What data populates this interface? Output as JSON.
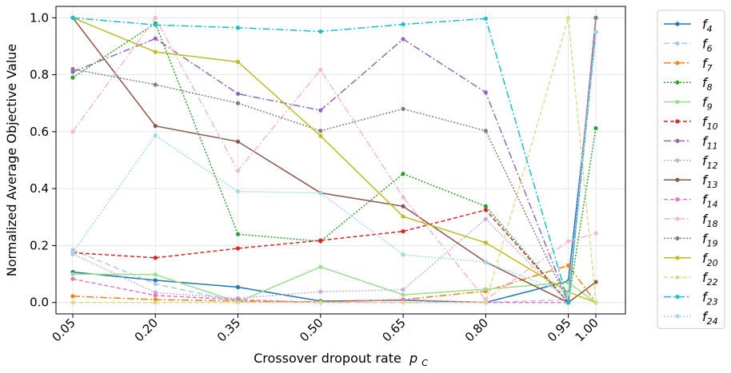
{
  "chart_data": {
    "type": "line",
    "title": "",
    "xlabel": "Crossover dropout rate",
    "xlabel_symbol": "p",
    "xlabel_subscript": "C",
    "ylabel": "Normalized Average Objective Value",
    "x": [
      0.05,
      0.2,
      0.35,
      0.5,
      0.65,
      0.8,
      0.95,
      1.0
    ],
    "xtick_labels": [
      "0.05",
      "0.20",
      "0.35",
      "0.50",
      "0.65",
      "0.80",
      "0.95",
      "1.00"
    ],
    "ylim": [
      -0.04,
      1.04
    ],
    "yticks": [
      0.0,
      0.2,
      0.4,
      0.6,
      0.8,
      1.0
    ],
    "ytick_labels": [
      "0.0",
      "0.2",
      "0.4",
      "0.6",
      "0.8",
      "1.0"
    ],
    "grid": true,
    "legend_position": "outside-right",
    "series": [
      {
        "name": "f",
        "sub": "4",
        "color": "#1f77b4",
        "dash": "",
        "values": [
          0.107,
          0.078,
          0.054,
          0.005,
          0.008,
          0.0,
          0.075,
          0.95
        ]
      },
      {
        "name": "f",
        "sub": "6",
        "color": "#aec7e8",
        "dash": "7,4",
        "values": [
          0.185,
          0.065,
          0.003,
          0.0,
          0.0,
          0.0,
          0.01,
          0.95
        ]
      },
      {
        "name": "f",
        "sub": "7",
        "color": "#ff7f0e",
        "dash": "9,3,2,3",
        "values": [
          0.022,
          0.01,
          0.005,
          0.002,
          0.01,
          0.04,
          0.13,
          0.0
        ]
      },
      {
        "name": "f",
        "sub": "8",
        "color": "#2ca02c",
        "dash": "2,2",
        "values": [
          0.79,
          0.98,
          0.24,
          0.215,
          0.452,
          0.338,
          0.0,
          0.612
        ]
      },
      {
        "name": "f",
        "sub": "9",
        "color": "#98df8a",
        "dash": "",
        "values": [
          0.1,
          0.098,
          0.002,
          0.125,
          0.027,
          0.047,
          0.07,
          0.0
        ]
      },
      {
        "name": "f",
        "sub": "10",
        "color": "#d62728",
        "dash": "5,3",
        "values": [
          0.175,
          0.157,
          0.19,
          0.218,
          0.25,
          0.325,
          0.0,
          1.0
        ]
      },
      {
        "name": "f",
        "sub": "11",
        "color": "#9467bd",
        "dash": "9,3,2,3",
        "values": [
          0.81,
          0.927,
          0.733,
          0.675,
          0.925,
          0.738,
          0.0,
          1.0
        ]
      },
      {
        "name": "f",
        "sub": "12",
        "color": "#c5b0d5",
        "dash": "2,2",
        "values": [
          0.17,
          0.035,
          0.015,
          0.038,
          0.045,
          0.293,
          0.0,
          0.95
        ]
      },
      {
        "name": "f",
        "sub": "13",
        "color": "#8c564b",
        "dash": "",
        "values": [
          1.0,
          0.62,
          0.565,
          0.385,
          0.338,
          0.142,
          0.0,
          0.072
        ]
      },
      {
        "name": "f",
        "sub": "14",
        "color": "#e377c2",
        "dash": "5,3",
        "values": [
          0.083,
          0.025,
          0.01,
          0.0,
          0.01,
          0.0,
          0.0,
          1.0
        ]
      },
      {
        "name": "f",
        "sub": "18",
        "color": "#f7b6d2",
        "dash": "9,3,2,3",
        "values": [
          0.6,
          1.0,
          0.463,
          0.817,
          0.37,
          0.01,
          0.215,
          0.243
        ]
      },
      {
        "name": "f",
        "sub": "19",
        "color": "#7f7f7f",
        "dash": "2,2",
        "values": [
          0.82,
          0.765,
          0.7,
          0.603,
          0.68,
          0.603,
          0.0,
          1.0
        ]
      },
      {
        "name": "f",
        "sub": "20",
        "color": "#bcbd22",
        "dash": "",
        "values": [
          1.0,
          0.88,
          0.845,
          0.585,
          0.302,
          0.21,
          0.037,
          0.0
        ]
      },
      {
        "name": "f",
        "sub": "22",
        "color": "#dbdb8d",
        "dash": "5,3",
        "values": [
          0.0,
          0.0,
          0.0,
          0.0,
          0.0,
          0.0,
          1.0,
          0.0
        ]
      },
      {
        "name": "f",
        "sub": "23",
        "color": "#17becf",
        "dash": "9,3,2,3",
        "values": [
          1.0,
          0.975,
          0.965,
          0.952,
          0.977,
          0.997,
          0.0,
          0.95
        ]
      },
      {
        "name": "f",
        "sub": "24",
        "color": "#9edae5",
        "dash": "2,2",
        "values": [
          0.175,
          0.587,
          0.39,
          0.385,
          0.168,
          0.142,
          0.03,
          0.95
        ]
      }
    ]
  }
}
